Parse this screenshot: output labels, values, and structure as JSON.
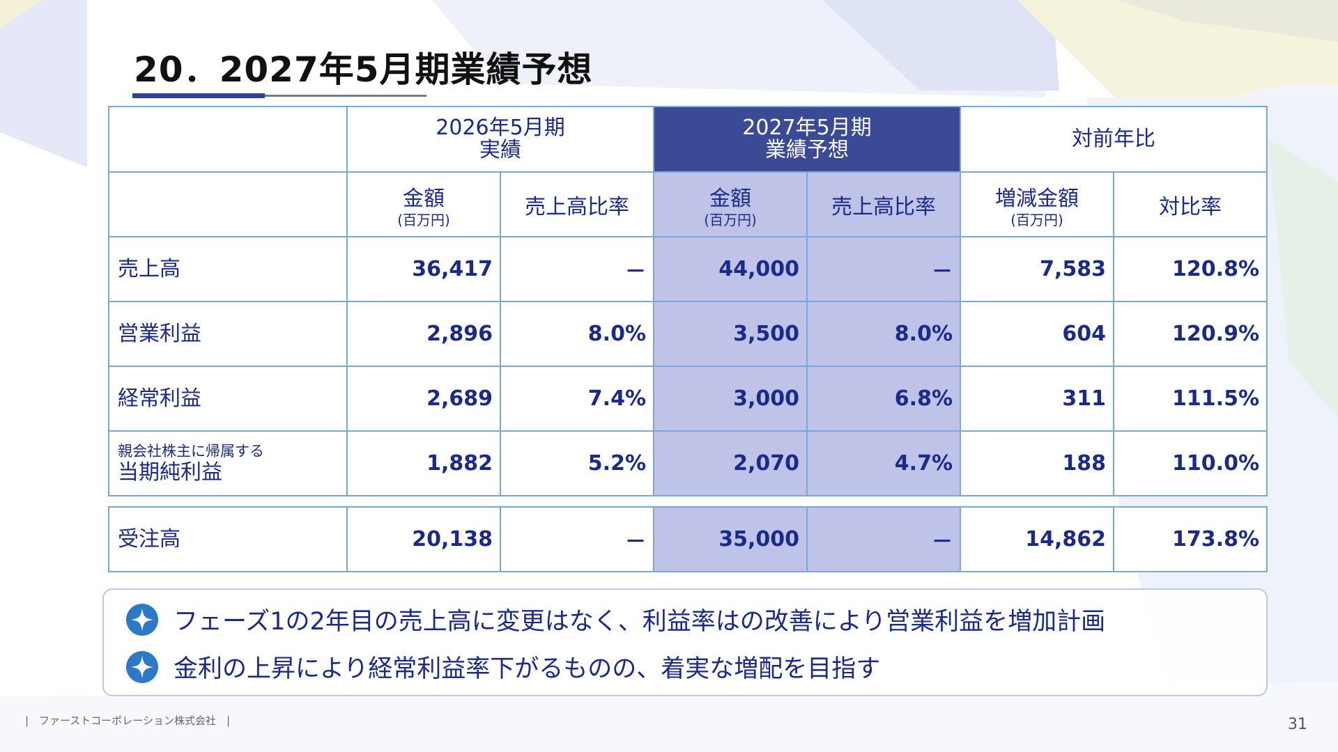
{
  "title": "20．2027年5月期業績予想",
  "colors": {
    "accent": "#2f3f9c",
    "forecast_header": "#3b4a94",
    "forecast_cell": "#bec3e7",
    "text": "#1b2a8a",
    "border": "#7aa6dc"
  },
  "table": {
    "group_headers": [
      {
        "line1": "2026年5月期",
        "line2": "実績"
      },
      {
        "line1": "2027年5月期",
        "line2": "業績予想"
      },
      {
        "line1": "対前年比",
        "line2": ""
      }
    ],
    "sub_headers": [
      {
        "label": "金額",
        "unit": "(百万円)"
      },
      {
        "label": "売上高比率",
        "unit": ""
      },
      {
        "label": "金額",
        "unit": "(百万円)"
      },
      {
        "label": "売上高比率",
        "unit": ""
      },
      {
        "label": "増減金額",
        "unit": "(百万円)"
      },
      {
        "label": "対比率",
        "unit": ""
      }
    ],
    "rows": [
      {
        "label_small": "",
        "label": "売上高",
        "cells": [
          "36,417",
          "－",
          "44,000",
          "－",
          "7,583",
          "120.8%"
        ]
      },
      {
        "label_small": "",
        "label": "営業利益",
        "cells": [
          "2,896",
          "8.0%",
          "3,500",
          "8.0%",
          "604",
          "120.9%"
        ]
      },
      {
        "label_small": "",
        "label": "経常利益",
        "cells": [
          "2,689",
          "7.4%",
          "3,000",
          "6.8%",
          "311",
          "111.5%"
        ]
      },
      {
        "label_small": "親会社株主に帰属する",
        "label": "当期純利益",
        "cells": [
          "1,882",
          "5.2%",
          "2,070",
          "4.7%",
          "188",
          "110.0%"
        ]
      }
    ],
    "orders_row": {
      "label": "受注高",
      "cells": [
        "20,138",
        "－",
        "35,000",
        "－",
        "14,862",
        "173.8%"
      ]
    }
  },
  "notes": [
    {
      "icon": "sparkle-icon",
      "text": "フェーズ1の2年目の売上高に変更はなく、利益率はの改善により営業利益を増加計画"
    },
    {
      "icon": "sparkle-icon",
      "text": "金利の上昇により経常利益率下がるものの、着実な増配を目指す"
    }
  ],
  "footer": {
    "company": "|　ファーストコーポレーション株式会社　|",
    "page_number": "31"
  }
}
